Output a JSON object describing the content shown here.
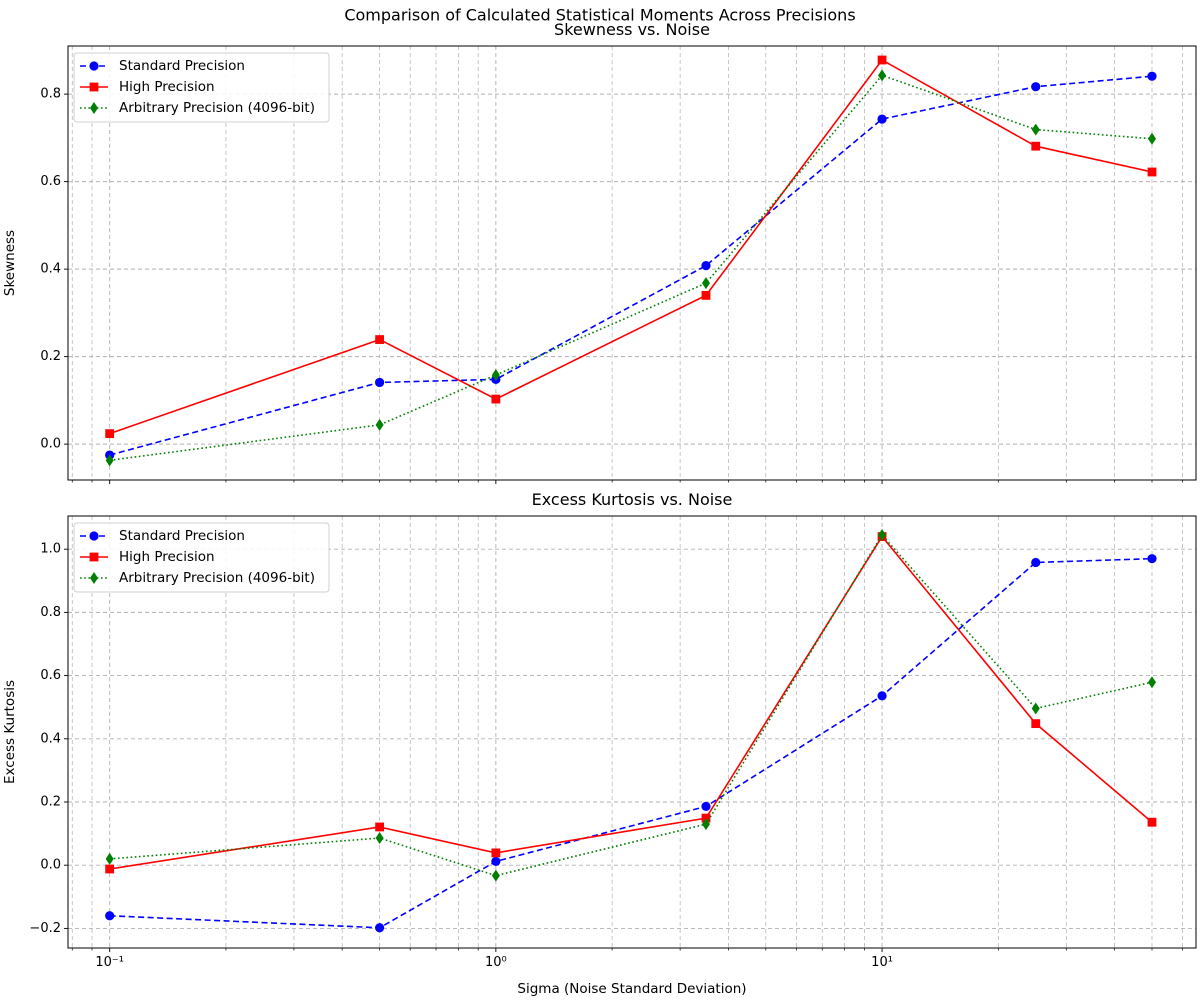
{
  "figure": {
    "suptitle": "Comparison of Calculated Statistical Moments Across Precisions"
  },
  "colors": {
    "standard": "#0000ff",
    "high": "#ff0000",
    "arbitrary": "#008000",
    "grid": "#b0b0b0"
  },
  "chart_data": [
    {
      "type": "line",
      "title": "Skewness vs. Noise",
      "xlabel": "",
      "ylabel": "Skewness",
      "xscale": "log",
      "xlim": [
        0.078,
        65
      ],
      "ylim": [
        -0.082,
        0.91
      ],
      "yticks": [
        0.0,
        0.2,
        0.4,
        0.6,
        0.8
      ],
      "ytick_labels": [
        "0.0",
        "0.2",
        "0.4",
        "0.6",
        "0.8"
      ],
      "xticks": [
        0.1,
        1,
        10
      ],
      "xtick_labels": [
        "",
        "",
        ""
      ],
      "grid": true,
      "legend_position": "top-left",
      "x": [
        0.1,
        0.5,
        1,
        3.5,
        10,
        25,
        50
      ],
      "series": [
        {
          "name": "Standard Precision",
          "color": "#0000ff",
          "linestyle": "dashed",
          "marker": "circle",
          "values": [
            -0.025,
            0.141,
            0.148,
            0.408,
            0.743,
            0.817,
            0.841
          ]
        },
        {
          "name": "High Precision",
          "color": "#ff0000",
          "linestyle": "solid",
          "marker": "square",
          "values": [
            0.024,
            0.239,
            0.103,
            0.34,
            0.878,
            0.681,
            0.622
          ]
        },
        {
          "name": "Arbitrary Precision (4096-bit)",
          "color": "#008000",
          "linestyle": "dotted",
          "marker": "diamond",
          "values": [
            -0.037,
            0.044,
            0.158,
            0.368,
            0.843,
            0.719,
            0.698
          ]
        }
      ]
    },
    {
      "type": "line",
      "title": "Excess Kurtosis vs. Noise",
      "xlabel": "Sigma (Noise Standard Deviation)",
      "ylabel": "Excess Kurtosis",
      "xscale": "log",
      "xlim": [
        0.078,
        65
      ],
      "ylim": [
        -0.262,
        1.105
      ],
      "yticks": [
        -0.2,
        0.0,
        0.2,
        0.4,
        0.6,
        0.8,
        1.0
      ],
      "ytick_labels": [
        "−0.2",
        "0.0",
        "0.2",
        "0.4",
        "0.6",
        "0.8",
        "1.0"
      ],
      "xticks": [
        0.1,
        1,
        10
      ],
      "xtick_labels": [
        "10⁻¹",
        "10⁰",
        "10¹"
      ],
      "grid": true,
      "legend_position": "top-left",
      "x": [
        0.1,
        0.5,
        1,
        3.5,
        10,
        25,
        50
      ],
      "series": [
        {
          "name": "Standard Precision",
          "color": "#0000ff",
          "linestyle": "dashed",
          "marker": "circle",
          "values": [
            -0.16,
            -0.198,
            0.012,
            0.186,
            0.536,
            0.958,
            0.97
          ]
        },
        {
          "name": "High Precision",
          "color": "#ff0000",
          "linestyle": "solid",
          "marker": "square",
          "values": [
            -0.012,
            0.121,
            0.039,
            0.149,
            1.04,
            0.448,
            0.136
          ]
        },
        {
          "name": "Arbitrary Precision (4096-bit)",
          "color": "#008000",
          "linestyle": "dotted",
          "marker": "diamond",
          "values": [
            0.02,
            0.086,
            -0.033,
            0.13,
            1.045,
            0.496,
            0.579
          ]
        }
      ]
    }
  ]
}
